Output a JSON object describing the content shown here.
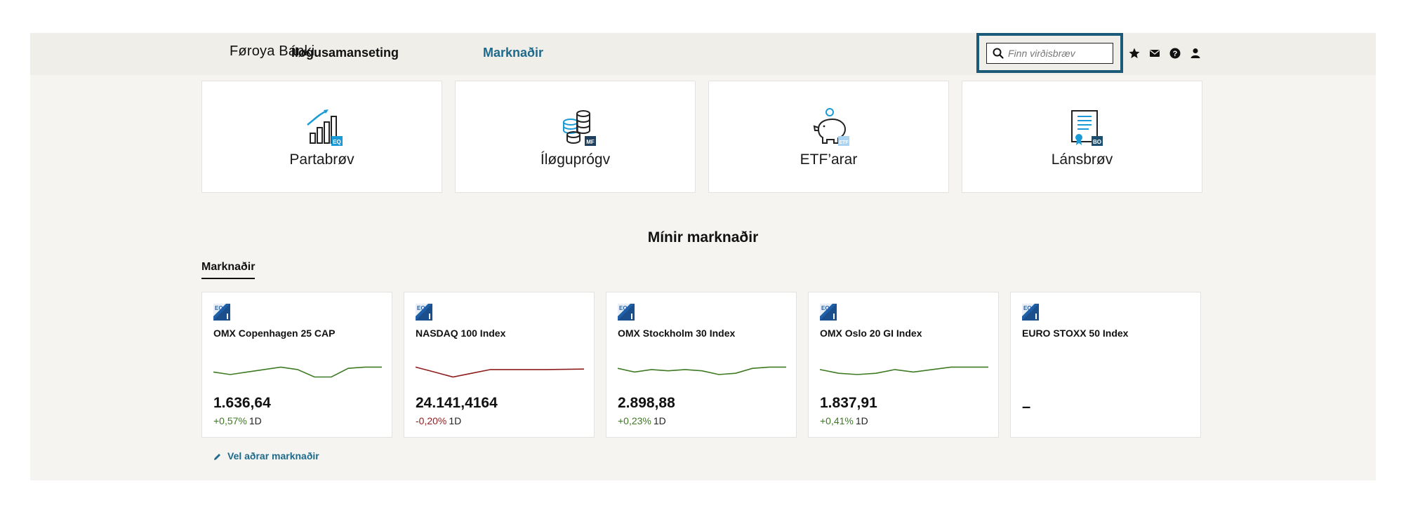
{
  "header": {
    "logo_text": "Føroya Banki",
    "nav": [
      {
        "label": "Íløgusamanseting",
        "active": false
      },
      {
        "label": "Marknaðir",
        "active": true
      }
    ],
    "search": {
      "placeholder": "Finn virðisbræv",
      "value": ""
    },
    "icons": [
      "star-icon",
      "mail-icon",
      "help-icon",
      "user-icon"
    ],
    "accent_color": "#1d6a8c"
  },
  "categories": [
    {
      "label": "Partabrøv",
      "badge": "EQ",
      "icon": "bar-chart-growth-icon"
    },
    {
      "label": "Íløguprógv",
      "badge": "MF",
      "icon": "coin-stacks-icon"
    },
    {
      "label": "ETF’arar",
      "badge": "ETF",
      "icon": "piggy-bank-icon"
    },
    {
      "label": "Lánsbrøv",
      "badge": "BO",
      "icon": "certificate-icon"
    }
  ],
  "section": {
    "title": "Mínir marknaðir",
    "tab_label": "Marknaðir"
  },
  "markets": [
    {
      "name": "OMX Copenhagen 25 CAP",
      "badge": "EQ",
      "value": "1.636,64",
      "change": "+0,57%",
      "period": "1D",
      "direction": "up",
      "trend": [
        6,
        4,
        6,
        8,
        10,
        8,
        2,
        2,
        9,
        10,
        10
      ]
    },
    {
      "name": "NASDAQ 100 Index",
      "badge": "EQ",
      "value": "24.141,4164",
      "change": "-0,20%",
      "period": "1D",
      "direction": "down",
      "trend": [
        10,
        6,
        2,
        5,
        8,
        8,
        8,
        8,
        8.2,
        8.4
      ]
    },
    {
      "name": "OMX Stockholm 30 Index",
      "badge": "EQ",
      "value": "2.898,88",
      "change": "+0,23%",
      "period": "1D",
      "direction": "up",
      "trend": [
        9,
        6,
        8,
        7,
        8,
        7,
        4,
        5,
        9,
        10,
        10
      ]
    },
    {
      "name": "OMX Oslo 20 GI Index",
      "badge": "EQ",
      "value": "1.837,91",
      "change": "+0,41%",
      "period": "1D",
      "direction": "up",
      "trend": [
        8,
        5,
        4,
        5,
        8,
        6,
        8,
        10,
        10,
        10
      ]
    },
    {
      "name": "EURO STOXX 50 Index",
      "badge": "EQ",
      "value": "–",
      "change": "",
      "period": "",
      "direction": "none",
      "trend": []
    }
  ],
  "footer_link": {
    "label": "Vel aðrar marknaðir",
    "icon": "pencil-icon"
  },
  "colors": {
    "positive": "#3d7a22",
    "negative": "#8f1c1c",
    "search_border": "#1b5a78"
  }
}
